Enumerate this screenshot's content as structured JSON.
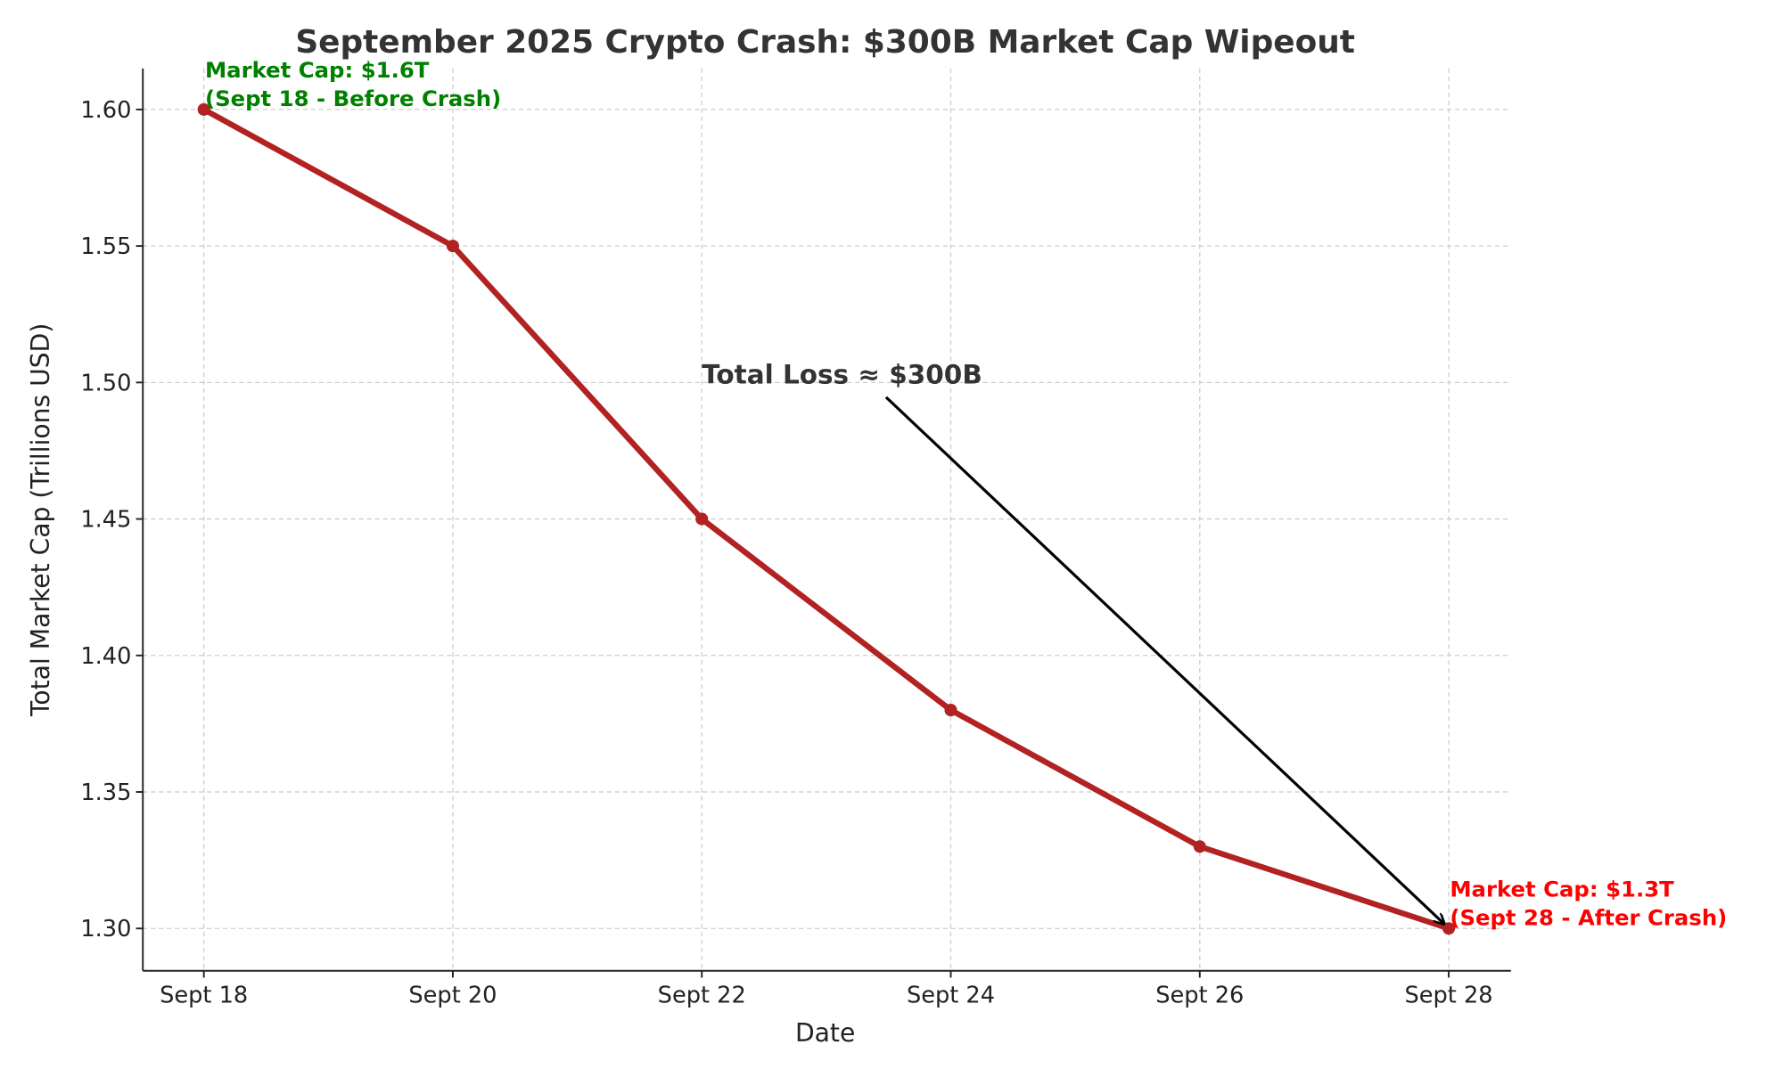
{
  "chart_data": {
    "type": "line",
    "title": "September 2025 Crypto Crash: $300B Market Cap Wipeout",
    "xlabel": "Date",
    "ylabel": "Total Market Cap (Trillions USD)",
    "categories": [
      "Sept 18",
      "Sept 20",
      "Sept 22",
      "Sept 24",
      "Sept 26",
      "Sept 28"
    ],
    "x": [
      18,
      20,
      22,
      24,
      26,
      28
    ],
    "series": [
      {
        "name": "Total Market Cap",
        "values": [
          1.6,
          1.55,
          1.45,
          1.38,
          1.33,
          1.3
        ],
        "color": "#b22222"
      }
    ],
    "xlim": [
      17.51,
      28.5
    ],
    "ylim": [
      1.2845,
      1.615
    ],
    "yticks": [
      1.3,
      1.35,
      1.4,
      1.45,
      1.5,
      1.55,
      1.6
    ],
    "ytick_labels": [
      "1.30",
      "1.35",
      "1.40",
      "1.45",
      "1.50",
      "1.55",
      "1.60"
    ],
    "grid": true,
    "annotations": [
      {
        "lines": [
          "Market Cap: $1.6T",
          "(Sept 18 - Before Crash)"
        ],
        "x": 18,
        "y": 1.6,
        "color": "#008000"
      },
      {
        "lines": [
          "Market Cap: $1.3T",
          "(Sept 28 - After Crash)"
        ],
        "x": 28,
        "y": 1.3,
        "color": "#ff0000"
      },
      {
        "text": "Total Loss ≈ $300B",
        "x_text": 22,
        "y_text": 1.503,
        "arrow_from": [
          23.48,
          1.4946
        ],
        "arrow_to": [
          28,
          1.3
        ],
        "color": "#333333"
      }
    ]
  }
}
